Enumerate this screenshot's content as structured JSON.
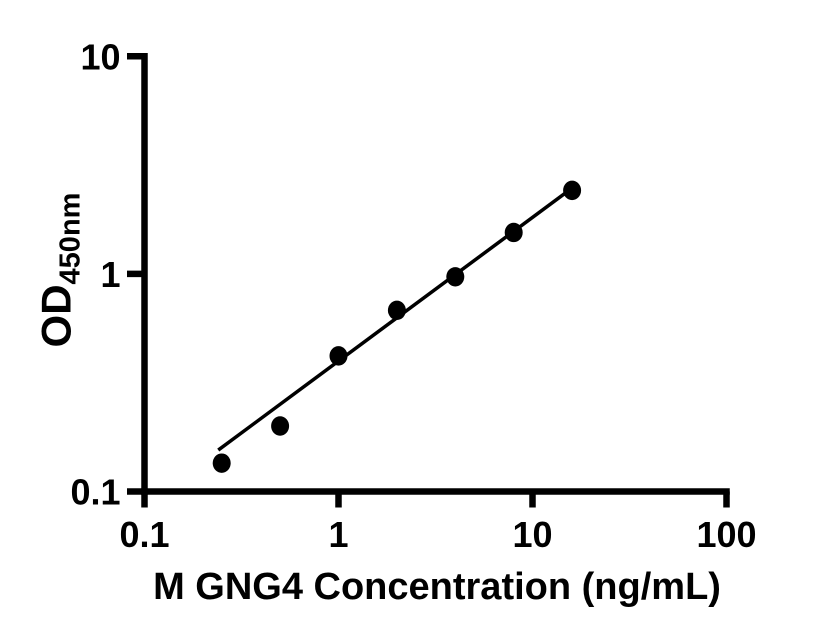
{
  "figure": {
    "background_color": "#ffffff",
    "foreground_color": "#000000"
  },
  "chart_data": {
    "type": "scatter",
    "title": "",
    "xlabel": "M GNG4 Concentration (ng/mL)",
    "ylabel_main": "OD",
    "ylabel_sub": "450nm",
    "x_scale": "log",
    "y_scale": "log",
    "xlim": [
      0.1,
      100
    ],
    "ylim": [
      0.1,
      10
    ],
    "x_tick_values": [
      0.1,
      1,
      10,
      100
    ],
    "x_tick_labels": [
      "0.1",
      "1",
      "10",
      "100"
    ],
    "y_tick_values": [
      0.1,
      1,
      10
    ],
    "y_tick_labels": [
      "0.1",
      "1",
      "10"
    ],
    "grid": false,
    "legend_position": "none",
    "series": [
      {
        "name": "standard-curve-points",
        "marker": "filled-circle",
        "color": "#000000",
        "x": [
          0.25,
          0.5,
          1,
          2,
          4,
          8,
          16
        ],
        "y": [
          0.135,
          0.2,
          0.42,
          0.68,
          0.97,
          1.55,
          2.42
        ]
      }
    ],
    "trend_line": {
      "x1": 0.24,
      "y1": 0.155,
      "x2": 16.0,
      "y2": 2.48,
      "color": "#000000"
    },
    "axis_color": "#000000"
  }
}
